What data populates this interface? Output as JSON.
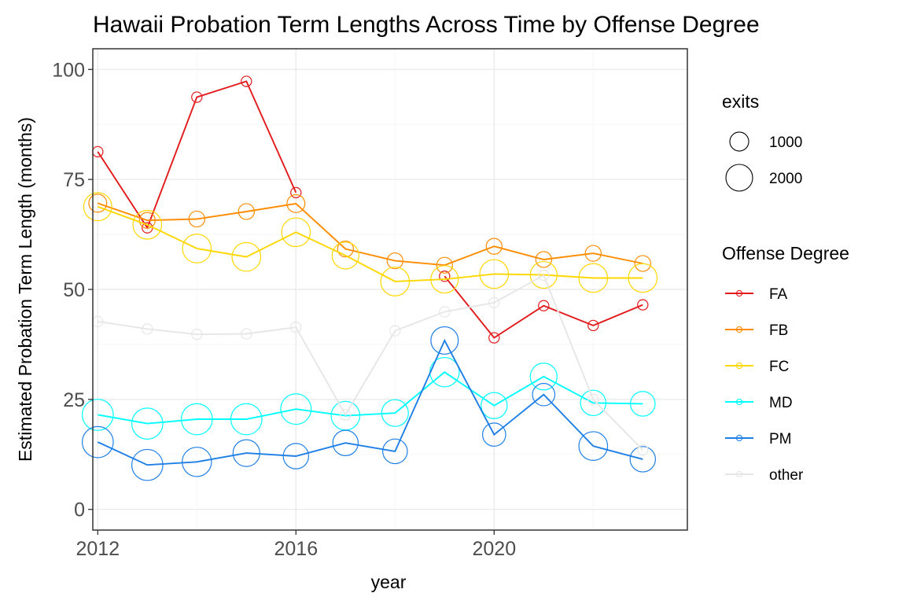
{
  "chart_data": {
    "type": "line",
    "title": "Hawaii Probation Term Lengths Across Time by Offense Degree",
    "xlabel": "year",
    "ylabel": "Estimated Probation Term Length (months)",
    "xlim": [
      2011.9,
      2023.9
    ],
    "ylim": [
      -4.7,
      104.7
    ],
    "x_ticks": [
      2012,
      2016,
      2020
    ],
    "y_ticks": [
      0,
      25,
      50,
      75,
      100
    ],
    "grid": true,
    "legend_position": "right",
    "size_legend": {
      "title": "exits",
      "entries": [
        {
          "label": "1000",
          "value": 1000
        },
        {
          "label": "2000",
          "value": 2000
        }
      ]
    },
    "color_legend_title": "Offense Degree",
    "series": [
      {
        "name": "FA",
        "color": "#e31a1c",
        "x": [
          2012,
          2013,
          2014,
          2015,
          2016,
          2019,
          2020,
          2021,
          2022,
          2023
        ],
        "y": [
          81.3,
          64.0,
          93.7,
          97.3,
          72.0,
          53.0,
          39.0,
          46.3,
          41.8,
          46.5
        ],
        "exits": [
          300,
          300,
          300,
          300,
          300,
          300,
          300,
          300,
          300,
          300
        ],
        "segments": [
          [
            0,
            4
          ],
          [
            5,
            9
          ]
        ]
      },
      {
        "name": "FB",
        "color": "#ff8c00",
        "x": [
          2012,
          2013,
          2014,
          2015,
          2016,
          2017,
          2018,
          2019,
          2020,
          2021,
          2022,
          2023
        ],
        "y": [
          69.6,
          65.7,
          66.0,
          67.7,
          69.5,
          59.2,
          56.5,
          55.5,
          59.8,
          56.8,
          58.2,
          55.9
        ],
        "exits": [
          900,
          700,
          700,
          700,
          900,
          700,
          700,
          700,
          700,
          700,
          700,
          700
        ]
      },
      {
        "name": "FC",
        "color": "#ffd700",
        "x": [
          2012,
          2013,
          2014,
          2015,
          2016,
          2017,
          2018,
          2019,
          2020,
          2021,
          2022,
          2023
        ],
        "y": [
          68.8,
          64.7,
          59.3,
          57.4,
          63.0,
          57.7,
          51.8,
          52.3,
          53.5,
          53.3,
          52.6,
          52.6
        ],
        "exits": [
          2200,
          2300,
          2300,
          2300,
          2300,
          2000,
          2300,
          2100,
          2300,
          2000,
          2300,
          2300
        ]
      },
      {
        "name": "MD",
        "color": "#00ffff",
        "x": [
          2012,
          2013,
          2014,
          2015,
          2016,
          2017,
          2018,
          2019,
          2020,
          2021,
          2022,
          2023
        ],
        "y": [
          21.5,
          19.5,
          20.5,
          20.5,
          22.8,
          21.3,
          21.9,
          31.2,
          23.6,
          30.2,
          24.2,
          24.0
        ],
        "exits": [
          2700,
          2700,
          2700,
          2700,
          2600,
          2300,
          2000,
          2400,
          1900,
          2000,
          1800,
          1700
        ]
      },
      {
        "name": "PM",
        "color": "#1e7fe6",
        "x": [
          2012,
          2013,
          2014,
          2015,
          2016,
          2017,
          2018,
          2019,
          2020,
          2021,
          2022,
          2023
        ],
        "y": [
          15.3,
          10.1,
          10.8,
          12.8,
          12.1,
          15.1,
          13.2,
          38.4,
          17.0,
          26.1,
          14.4,
          11.4
        ],
        "exits": [
          2700,
          2700,
          2400,
          2000,
          1800,
          1800,
          1700,
          2100,
          1500,
          1400,
          2300,
          1800
        ]
      },
      {
        "name": "other",
        "color": "#e6e6e6",
        "x": [
          2012,
          2013,
          2014,
          2015,
          2016,
          2017,
          2018,
          2019,
          2020,
          2021,
          2022,
          2023
        ],
        "y": [
          42.7,
          41.0,
          39.8,
          39.9,
          41.4,
          21.5,
          40.6,
          44.9,
          47.0,
          53.2,
          25.0,
          13.5
        ],
        "exits": [
          300,
          300,
          300,
          300,
          300,
          300,
          300,
          300,
          300,
          300,
          300,
          300
        ]
      }
    ]
  }
}
